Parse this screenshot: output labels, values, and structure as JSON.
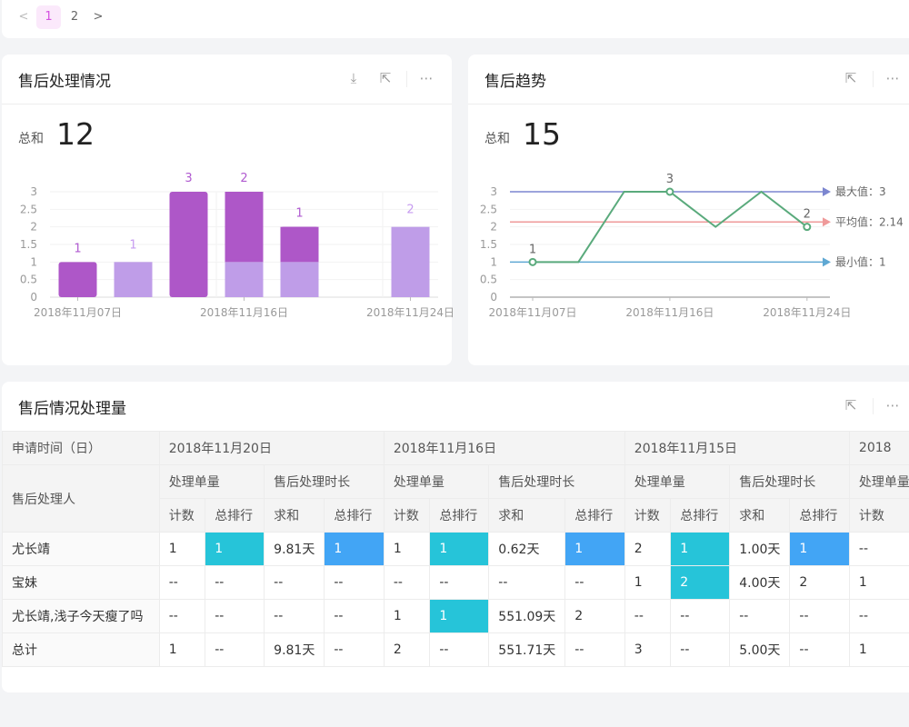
{
  "pager": {
    "prev": "<",
    "pages": [
      "1",
      "2"
    ],
    "current": "1",
    "next": ">"
  },
  "card1": {
    "title": "售后处理情况",
    "sum_label": "总和",
    "sum_value": "12",
    "icons": [
      "download-icon",
      "expand-icon",
      "more-icon"
    ],
    "chart_data": {
      "type": "bar",
      "stacked": true,
      "categories": [
        "2018年11月07日",
        "",
        "",
        "2018年11月16日",
        "",
        "",
        "2018年11月24日"
      ],
      "x_tick_labels": [
        "2018年11月07日",
        "2018年11月16日",
        "2018年11月24日"
      ],
      "series": [
        {
          "values": [
            1,
            0,
            3,
            2,
            1,
            0,
            0
          ],
          "color": "#ae57c8"
        },
        {
          "values": [
            0,
            1,
            0,
            1,
            1,
            0,
            2
          ],
          "color": "#bf9de8"
        }
      ],
      "yticks": [
        "0",
        "0.5",
        "1",
        "1.5",
        "2",
        "2.5",
        "3"
      ],
      "ylim": [
        0,
        3
      ],
      "grid": true
    }
  },
  "card2": {
    "title": "售后趋势",
    "sum_label": "总和",
    "sum_value": "15",
    "icons": [
      "expand-icon",
      "more-icon"
    ],
    "chart_data": {
      "type": "line",
      "categories": [
        "2018年11月07日",
        "",
        "",
        "2018年11月16日",
        "",
        "",
        "2018年11月24日"
      ],
      "x_tick_labels": [
        "2018年11月07日",
        "2018年11月16日",
        "2018年11月24日"
      ],
      "values": [
        1,
        1,
        3,
        3,
        2,
        3,
        2
      ],
      "color": "#5aaa7c",
      "point_labels": [
        {
          "index": 0,
          "text": "1"
        },
        {
          "index": 3,
          "text": "3"
        },
        {
          "index": 6,
          "text": "2"
        }
      ],
      "mark_lines": [
        {
          "label": "最大值：3",
          "value": 3,
          "color": "#7c86d0"
        },
        {
          "label": "平均值：2.14",
          "value": 2.14,
          "color": "#ef9a9a"
        },
        {
          "label": "最小值：1",
          "value": 1,
          "color": "#5fa8d3"
        }
      ],
      "yticks": [
        "0",
        "0.5",
        "1",
        "1.5",
        "2",
        "2.5",
        "3"
      ],
      "ylim": [
        0,
        3
      ],
      "grid": true
    }
  },
  "card3": {
    "title": "售后情况处理量",
    "icons": [
      "expand-icon",
      "more-icon"
    ],
    "table": {
      "corner_top": "申请时间（日）",
      "corner_row": "售后处理人",
      "dates": [
        "2018年11月20日",
        "2018年11月16日",
        "2018年11月15日",
        "2018"
      ],
      "groups": [
        "处理单量",
        "售后处理时长"
      ],
      "sub": [
        "计数",
        "总排行",
        "求和",
        "总排行"
      ],
      "rows": [
        {
          "name": "尤长靖",
          "cells": [
            "1",
            "1",
            "9.81天",
            "1",
            "1",
            "1",
            "0.62天",
            "1",
            "2",
            "1",
            "1.00天",
            "1",
            "--"
          ]
        },
        {
          "name": "宝妹",
          "cells": [
            "--",
            "--",
            "--",
            "--",
            "--",
            "--",
            "--",
            "--",
            "1",
            "2",
            "4.00天",
            "2",
            "1"
          ]
        },
        {
          "name": "尤长靖,浅子今天瘦了吗",
          "cells": [
            "--",
            "--",
            "--",
            "--",
            "1",
            "1",
            "551.09天",
            "2",
            "--",
            "--",
            "--",
            "--",
            "--"
          ]
        },
        {
          "name": "总计",
          "cells": [
            "1",
            "--",
            "9.81天",
            "--",
            "2",
            "--",
            "551.71天",
            "--",
            "3",
            "--",
            "5.00天",
            "--",
            "1"
          ]
        }
      ],
      "highlight_colors": {
        "count_rank": "#26c4d9",
        "duration_rank": "#42a5f5"
      }
    }
  }
}
